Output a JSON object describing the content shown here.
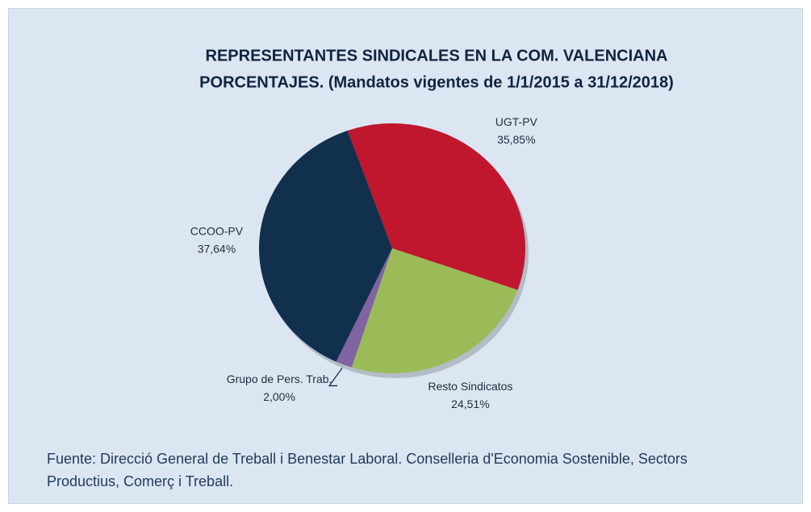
{
  "chart_data": {
    "type": "pie",
    "title": "REPRESENTANTES SINDICALES EN LA COM. VALENCIANA",
    "subtitle": "PORCENTAJES. (Mandatos vigentes de 1/1/2015 a 31/12/2018)",
    "categories": [
      "UGT-PV",
      "Resto Sindicatos",
      "Grupo de Pers. Trab.",
      "CCOO-PV"
    ],
    "values": [
      35.85,
      24.51,
      2.0,
      37.64
    ],
    "value_labels": [
      "35,85%",
      "24,51%",
      "2,00%",
      "37,64%"
    ],
    "colors": [
      "#c0172f",
      "#9bbb59",
      "#8064a2",
      "#10304e"
    ],
    "source": "Fuente: Direcció General de Treball i Benestar Laboral. Conselleria d'Economia Sostenible, Sectors Productius, Comerç i Treball."
  }
}
